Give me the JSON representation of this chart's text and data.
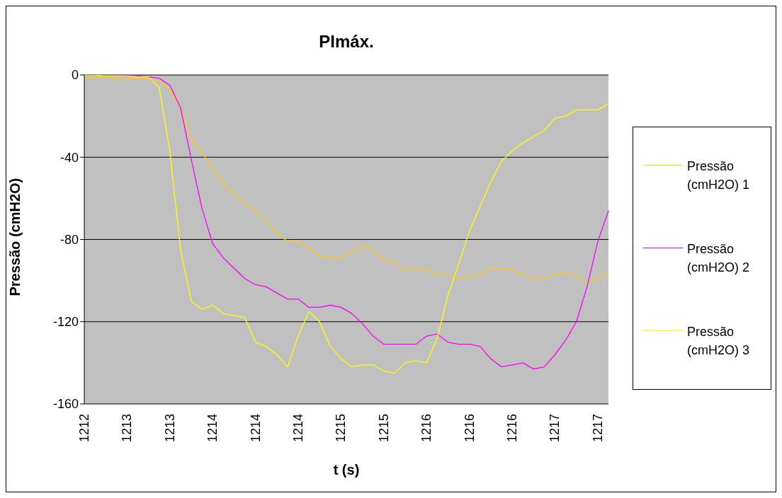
{
  "chart_data": {
    "type": "line",
    "title": "PImáx.",
    "xlabel": "t (s)",
    "ylabel": "Pressão (cmH2O)",
    "categories": [
      "1212",
      null,
      null,
      null,
      "1213",
      null,
      null,
      null,
      "1213",
      null,
      null,
      null,
      "1214",
      null,
      null,
      null,
      "1214",
      null,
      null,
      null,
      "1214",
      null,
      null,
      null,
      "1215",
      null,
      null,
      null,
      "1215",
      null,
      null,
      null,
      "1216",
      null,
      null,
      null,
      "1216",
      null,
      null,
      null,
      "1216",
      null,
      null,
      null,
      "1217",
      null,
      null,
      null,
      "1217",
      null
    ],
    "series": [
      {
        "name": "Pressão (cmH2O) 1",
        "color": "#ffcc00",
        "values": [
          -1.5,
          -1,
          -1,
          -2,
          -2,
          -1.4,
          -1.7,
          -3,
          -7,
          -16,
          -31,
          -38,
          -45,
          -53,
          -58,
          -62,
          -66,
          -71,
          -77,
          -81,
          -81,
          -84,
          -88,
          -89,
          -89,
          -86,
          -83,
          -85,
          -90,
          -91,
          -95,
          -94,
          -95,
          -97,
          -97,
          -99,
          -98,
          -97,
          -94,
          -94,
          -95,
          -97,
          -99,
          -99,
          -97,
          -96,
          -98,
          -101,
          -99,
          -96
        ]
      },
      {
        "name": "Pressão (cmH2O) 2",
        "color": "#ff00ff",
        "values": [
          null,
          null,
          null,
          0,
          0,
          -0.5,
          -1,
          -1.6,
          -5,
          -16,
          -41,
          -65,
          -82,
          -89,
          -94,
          -99,
          -102,
          -103,
          -106,
          -109,
          -109,
          -113,
          -113,
          -112,
          -113,
          -116,
          -121,
          -127,
          -131,
          -131,
          -131,
          -131,
          -127,
          -126,
          -130,
          -131,
          -131,
          -132,
          -138,
          -142,
          -141,
          -140,
          -143,
          -142,
          -136,
          -129,
          -120,
          -103,
          -81,
          -66
        ]
      },
      {
        "name": "Pressão (cmH2O) 3",
        "color": "#ffff00",
        "values": [
          0,
          0,
          -0.5,
          -0.5,
          -0.5,
          -1,
          -1,
          -6,
          -37,
          -85,
          -110,
          -114,
          -112,
          -116,
          -117,
          -118,
          -130,
          -132,
          -136,
          -142,
          -127,
          -115,
          -120,
          -132,
          -138,
          -142,
          -141,
          -141,
          -144,
          -145,
          -140,
          -139,
          -140,
          -128,
          -107,
          -92,
          -76,
          -64,
          -52,
          -42,
          -37,
          -33,
          -30,
          -27,
          -21,
          -20,
          -17,
          -17,
          -17,
          -14
        ]
      }
    ],
    "ylim": [
      -160,
      0
    ],
    "yticks": [
      0,
      -40,
      -80,
      -120,
      -160
    ],
    "grid": "y",
    "legend": "right"
  }
}
